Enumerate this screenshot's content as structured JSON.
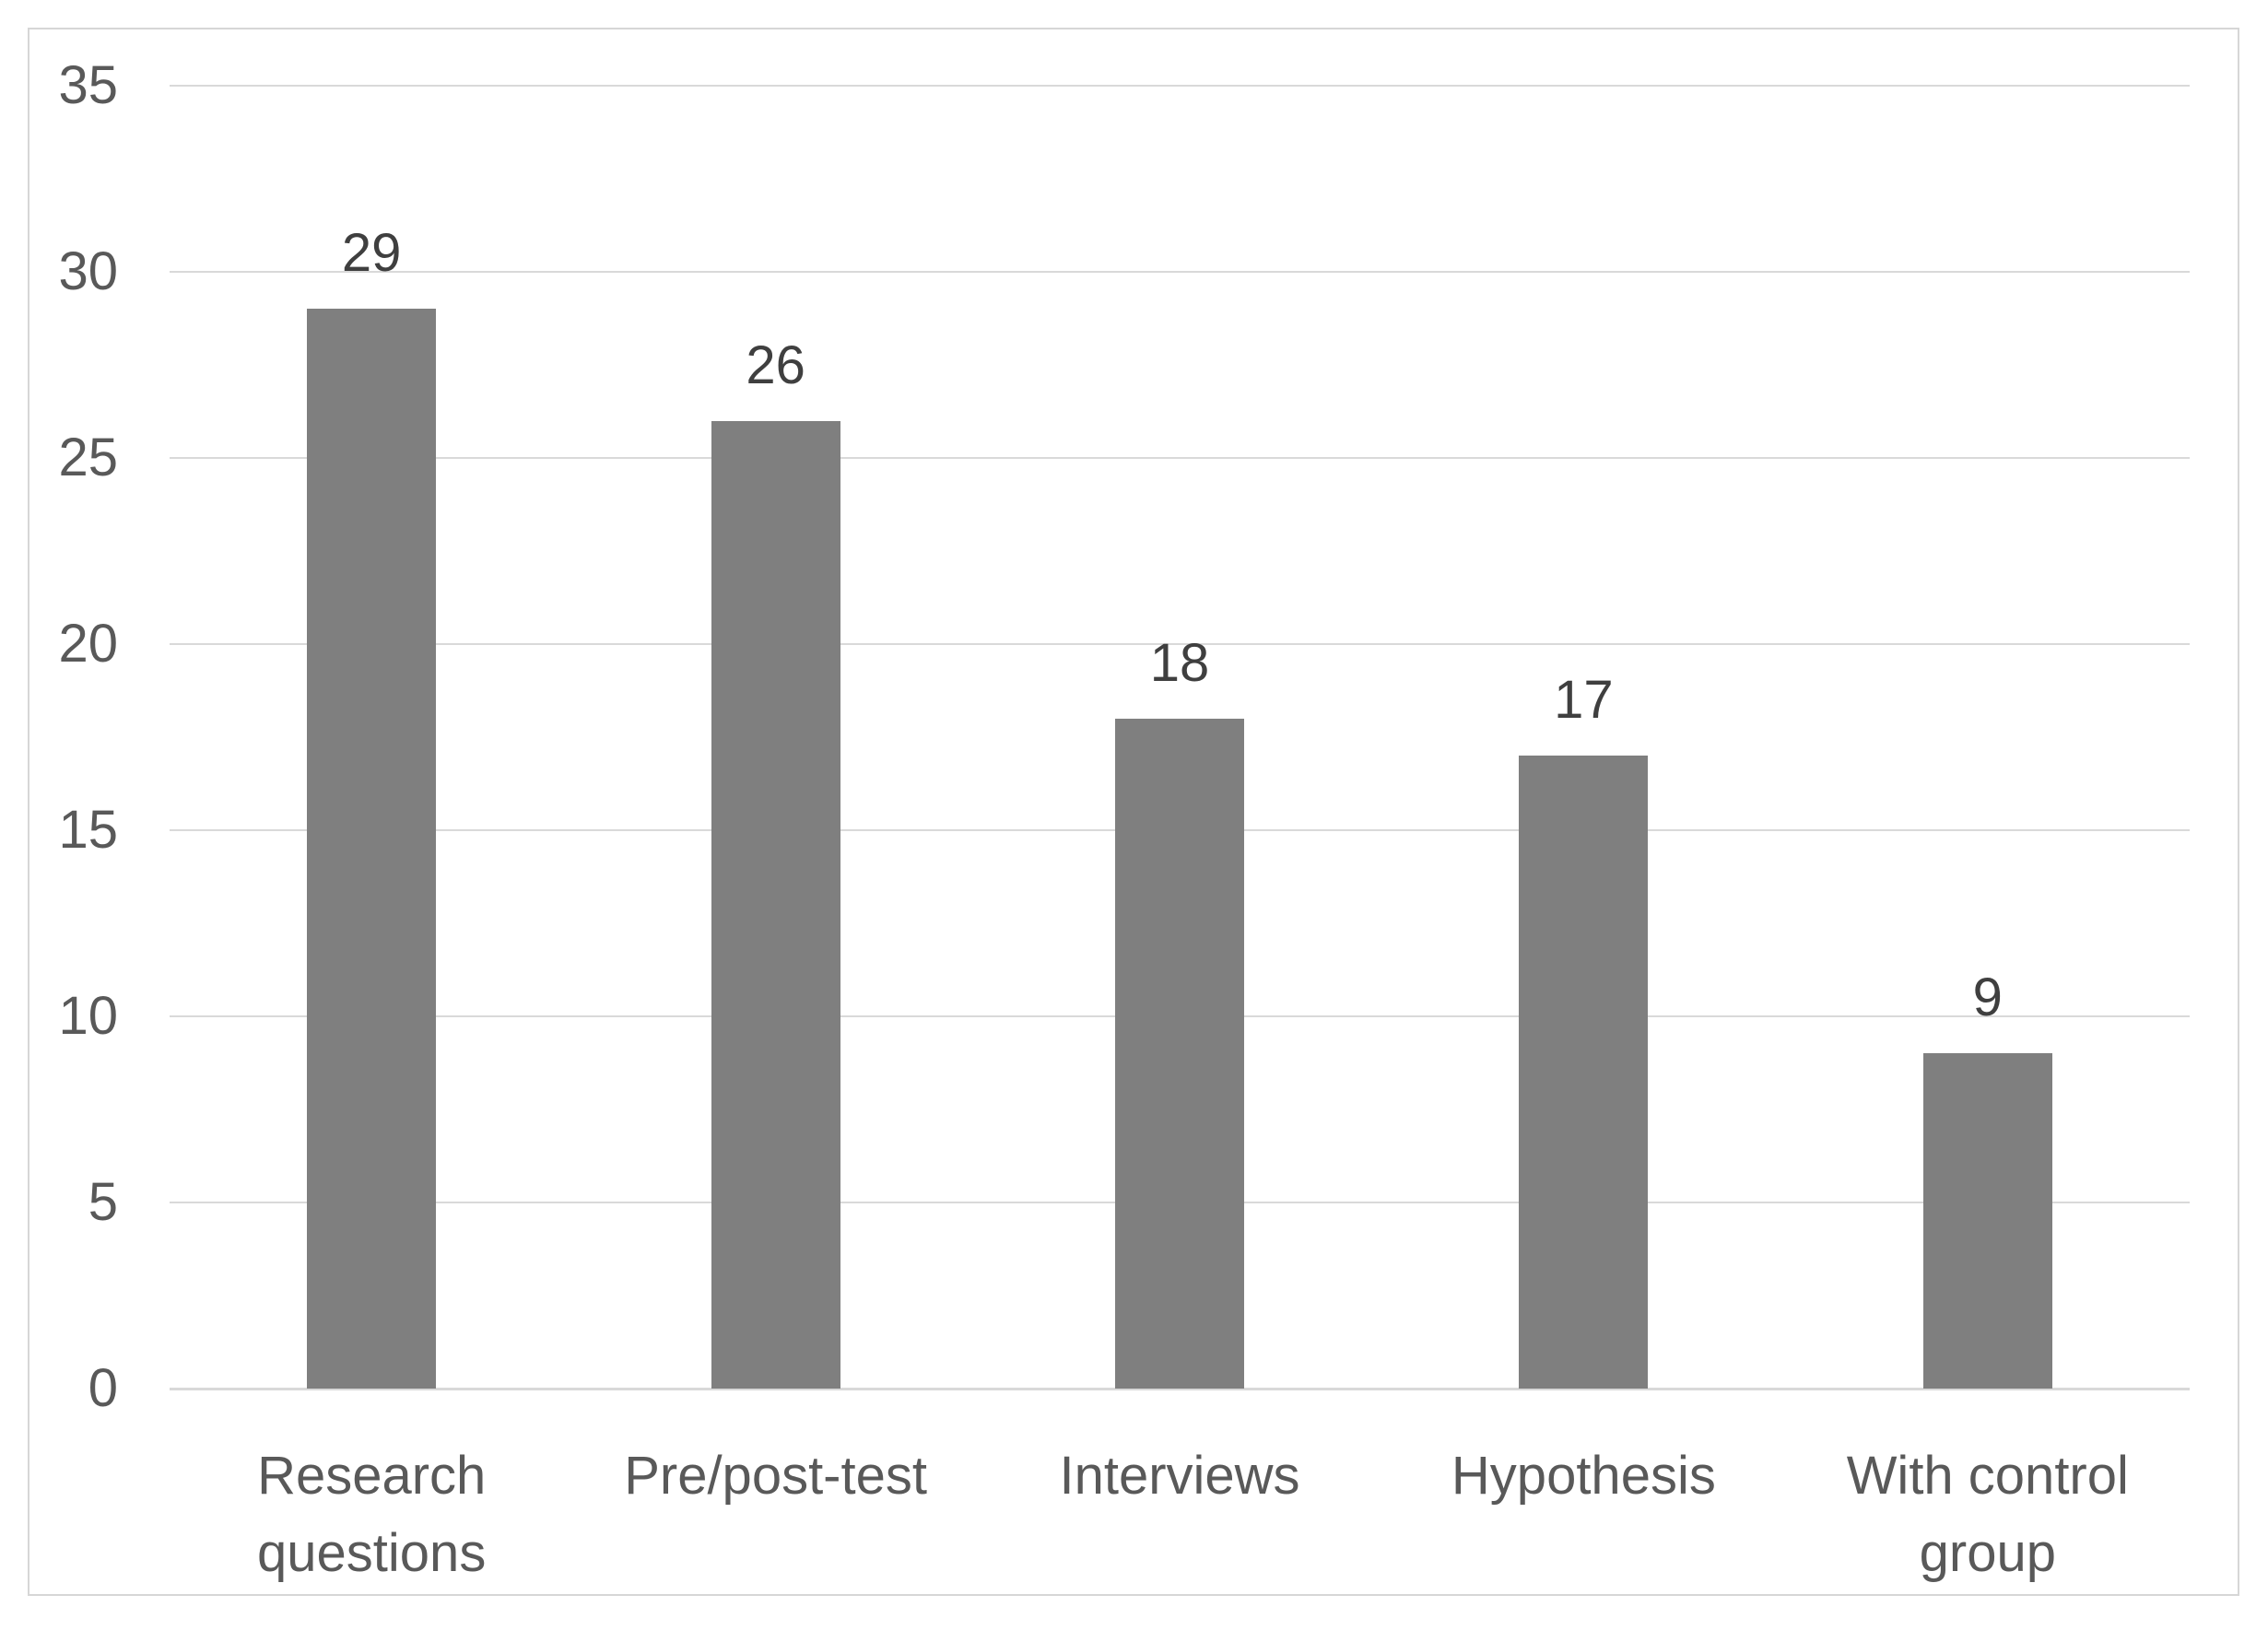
{
  "chart_data": {
    "type": "bar",
    "categories": [
      "Research questions",
      "Pre/post-test",
      "Interviews",
      "Hypothesis",
      "With control group"
    ],
    "values": [
      29,
      26,
      18,
      17,
      9
    ],
    "data_labels": [
      "29",
      "26",
      "18",
      "17",
      "9"
    ],
    "title": "",
    "xlabel": "",
    "ylabel": "",
    "ylim": [
      0,
      35
    ],
    "yticks": [
      0,
      5,
      10,
      15,
      20,
      25,
      30,
      35
    ],
    "grid": true,
    "legend": false
  },
  "colors": {
    "bar": "#7f7f7f",
    "gridline": "#d9d9d9",
    "axis_line": "#d9d9d9",
    "tick_label": "#595959",
    "category_label": "#595959",
    "data_label": "#3f3f3f",
    "frame_border": "#d6d6d6",
    "background": "#ffffff"
  }
}
